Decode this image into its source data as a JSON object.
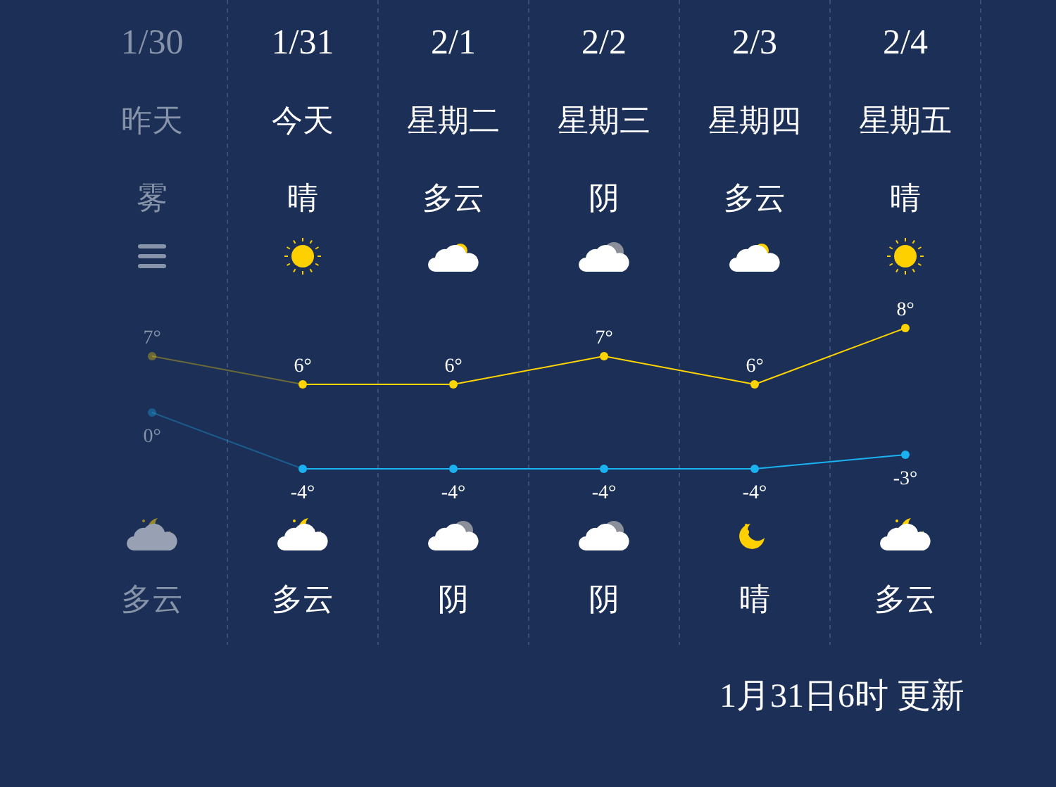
{
  "chart_data": [
    {
      "type": "line",
      "categories": [
        "1/30",
        "1/31",
        "2/1",
        "2/2",
        "2/3",
        "2/4"
      ],
      "series": [
        {
          "color": "#ffd400",
          "values": [
            7,
            6,
            6,
            7,
            6,
            8
          ],
          "value_labels": [
            "7°",
            "6°",
            "6°",
            "7°",
            "6°",
            "8°"
          ]
        }
      ],
      "marker": "circle",
      "line_style": "solid",
      "grid": "x",
      "annotations": [
        "昨天",
        "今天",
        "星期二",
        "星期三",
        "星期四",
        "星期五",
        "雾",
        "晴",
        "多云",
        "阴",
        "多云",
        "晴",
        "多云",
        "多云",
        "阴",
        "阴",
        "晴",
        "多云",
        "1月31日6时 更新"
      ]
    },
    {
      "type": "line",
      "categories": [
        null,
        null,
        null,
        null,
        null,
        null
      ],
      "series": [
        {
          "color": "#1ab2f0",
          "values": [
            0,
            -4,
            -4,
            -4,
            -4,
            -3
          ],
          "value_labels": [
            "0°",
            "-4°",
            "-4°",
            "-4°",
            "-4°",
            "-3°"
          ]
        }
      ],
      "marker": "circle",
      "line_style": "solid"
    }
  ]
}
